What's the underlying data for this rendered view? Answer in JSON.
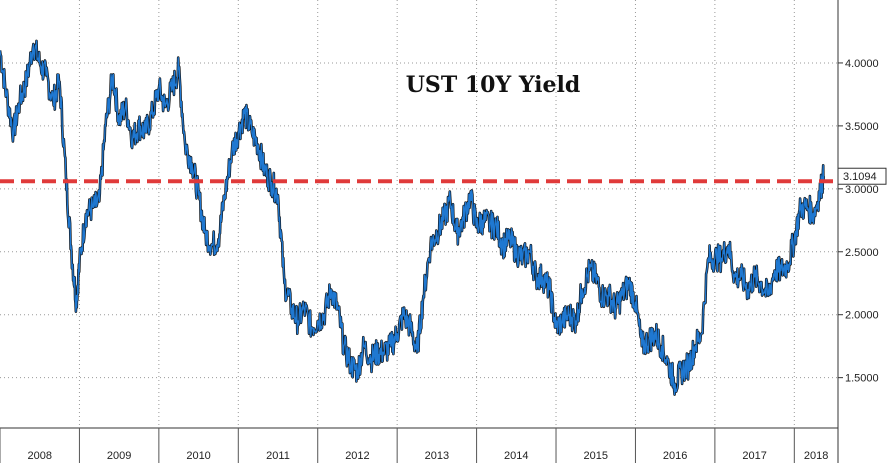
{
  "chart_data": {
    "type": "line",
    "title": "UST 10Y Yield",
    "xlabel": "",
    "ylabel": "",
    "x_tick_labels": [
      "2008",
      "2009",
      "2010",
      "2011",
      "2012",
      "2013",
      "2014",
      "2015",
      "2016",
      "2017",
      "2018"
    ],
    "y_ticks": [
      1.5,
      2.0,
      2.5,
      3.0,
      3.5,
      4.0
    ],
    "y_tick_labels": [
      "1.5000",
      "2.0000",
      "2.5000",
      "3.0000",
      "3.5000",
      "4.0000"
    ],
    "ylim": [
      1.1,
      4.5
    ],
    "xlim": [
      2008.0,
      2018.55
    ],
    "grid": true,
    "y_axis_side": "right",
    "reference_line": {
      "value": 3.06,
      "style": "dashed",
      "color": "#e03a3a"
    },
    "last_value_label": "3.1094",
    "series": [
      {
        "color": "#1f78d1",
        "x": [
          2008.0,
          2008.08,
          2008.17,
          2008.25,
          2008.33,
          2008.42,
          2008.5,
          2008.58,
          2008.67,
          2008.75,
          2008.83,
          2008.9,
          2008.96,
          2009.0,
          2009.08,
          2009.17,
          2009.25,
          2009.33,
          2009.42,
          2009.5,
          2009.58,
          2009.67,
          2009.75,
          2009.83,
          2009.92,
          2010.0,
          2010.08,
          2010.17,
          2010.25,
          2010.33,
          2010.42,
          2010.5,
          2010.58,
          2010.67,
          2010.75,
          2010.83,
          2010.92,
          2011.0,
          2011.08,
          2011.17,
          2011.25,
          2011.33,
          2011.42,
          2011.5,
          2011.58,
          2011.67,
          2011.75,
          2011.83,
          2011.92,
          2012.0,
          2012.08,
          2012.17,
          2012.25,
          2012.33,
          2012.42,
          2012.5,
          2012.58,
          2012.67,
          2012.75,
          2012.83,
          2012.92,
          2013.0,
          2013.08,
          2013.17,
          2013.25,
          2013.33,
          2013.42,
          2013.5,
          2013.58,
          2013.67,
          2013.75,
          2013.83,
          2013.92,
          2014.0,
          2014.08,
          2014.17,
          2014.25,
          2014.33,
          2014.42,
          2014.5,
          2014.58,
          2014.67,
          2014.75,
          2014.83,
          2014.92,
          2015.0,
          2015.08,
          2015.17,
          2015.25,
          2015.33,
          2015.42,
          2015.5,
          2015.58,
          2015.67,
          2015.75,
          2015.83,
          2015.92,
          2016.0,
          2016.08,
          2016.17,
          2016.25,
          2016.33,
          2016.42,
          2016.5,
          2016.58,
          2016.67,
          2016.75,
          2016.83,
          2016.92,
          2017.0,
          2017.08,
          2017.17,
          2017.25,
          2017.33,
          2017.42,
          2017.5,
          2017.58,
          2017.67,
          2017.75,
          2017.83,
          2017.92,
          2018.0,
          2018.08,
          2018.17,
          2018.25,
          2018.33,
          2018.37
        ],
        "y": [
          4.1,
          3.75,
          3.45,
          3.7,
          3.85,
          4.15,
          4.0,
          3.9,
          3.7,
          3.85,
          3.1,
          2.5,
          2.1,
          2.4,
          2.8,
          2.85,
          2.9,
          3.5,
          3.9,
          3.55,
          3.65,
          3.4,
          3.5,
          3.45,
          3.6,
          3.8,
          3.65,
          3.8,
          3.95,
          3.35,
          3.2,
          2.95,
          2.65,
          2.55,
          2.6,
          2.95,
          3.3,
          3.45,
          3.6,
          3.45,
          3.35,
          3.15,
          3.05,
          2.95,
          2.25,
          2.05,
          1.95,
          2.05,
          1.9,
          1.95,
          2.0,
          2.2,
          2.05,
          1.75,
          1.6,
          1.55,
          1.75,
          1.65,
          1.7,
          1.7,
          1.75,
          1.85,
          2.0,
          1.9,
          1.7,
          2.15,
          2.55,
          2.65,
          2.75,
          2.9,
          2.65,
          2.75,
          2.95,
          2.7,
          2.75,
          2.72,
          2.7,
          2.55,
          2.6,
          2.5,
          2.45,
          2.5,
          2.3,
          2.3,
          2.2,
          1.9,
          1.95,
          2.0,
          1.95,
          2.2,
          2.35,
          2.3,
          2.15,
          2.15,
          2.05,
          2.15,
          2.25,
          2.1,
          1.75,
          1.8,
          1.85,
          1.75,
          1.6,
          1.45,
          1.55,
          1.6,
          1.75,
          1.85,
          2.45,
          2.45,
          2.45,
          2.55,
          2.3,
          2.3,
          2.2,
          2.3,
          2.25,
          2.15,
          2.35,
          2.35,
          2.4,
          2.6,
          2.85,
          2.85,
          2.8,
          3.0,
          3.1
        ]
      }
    ]
  }
}
